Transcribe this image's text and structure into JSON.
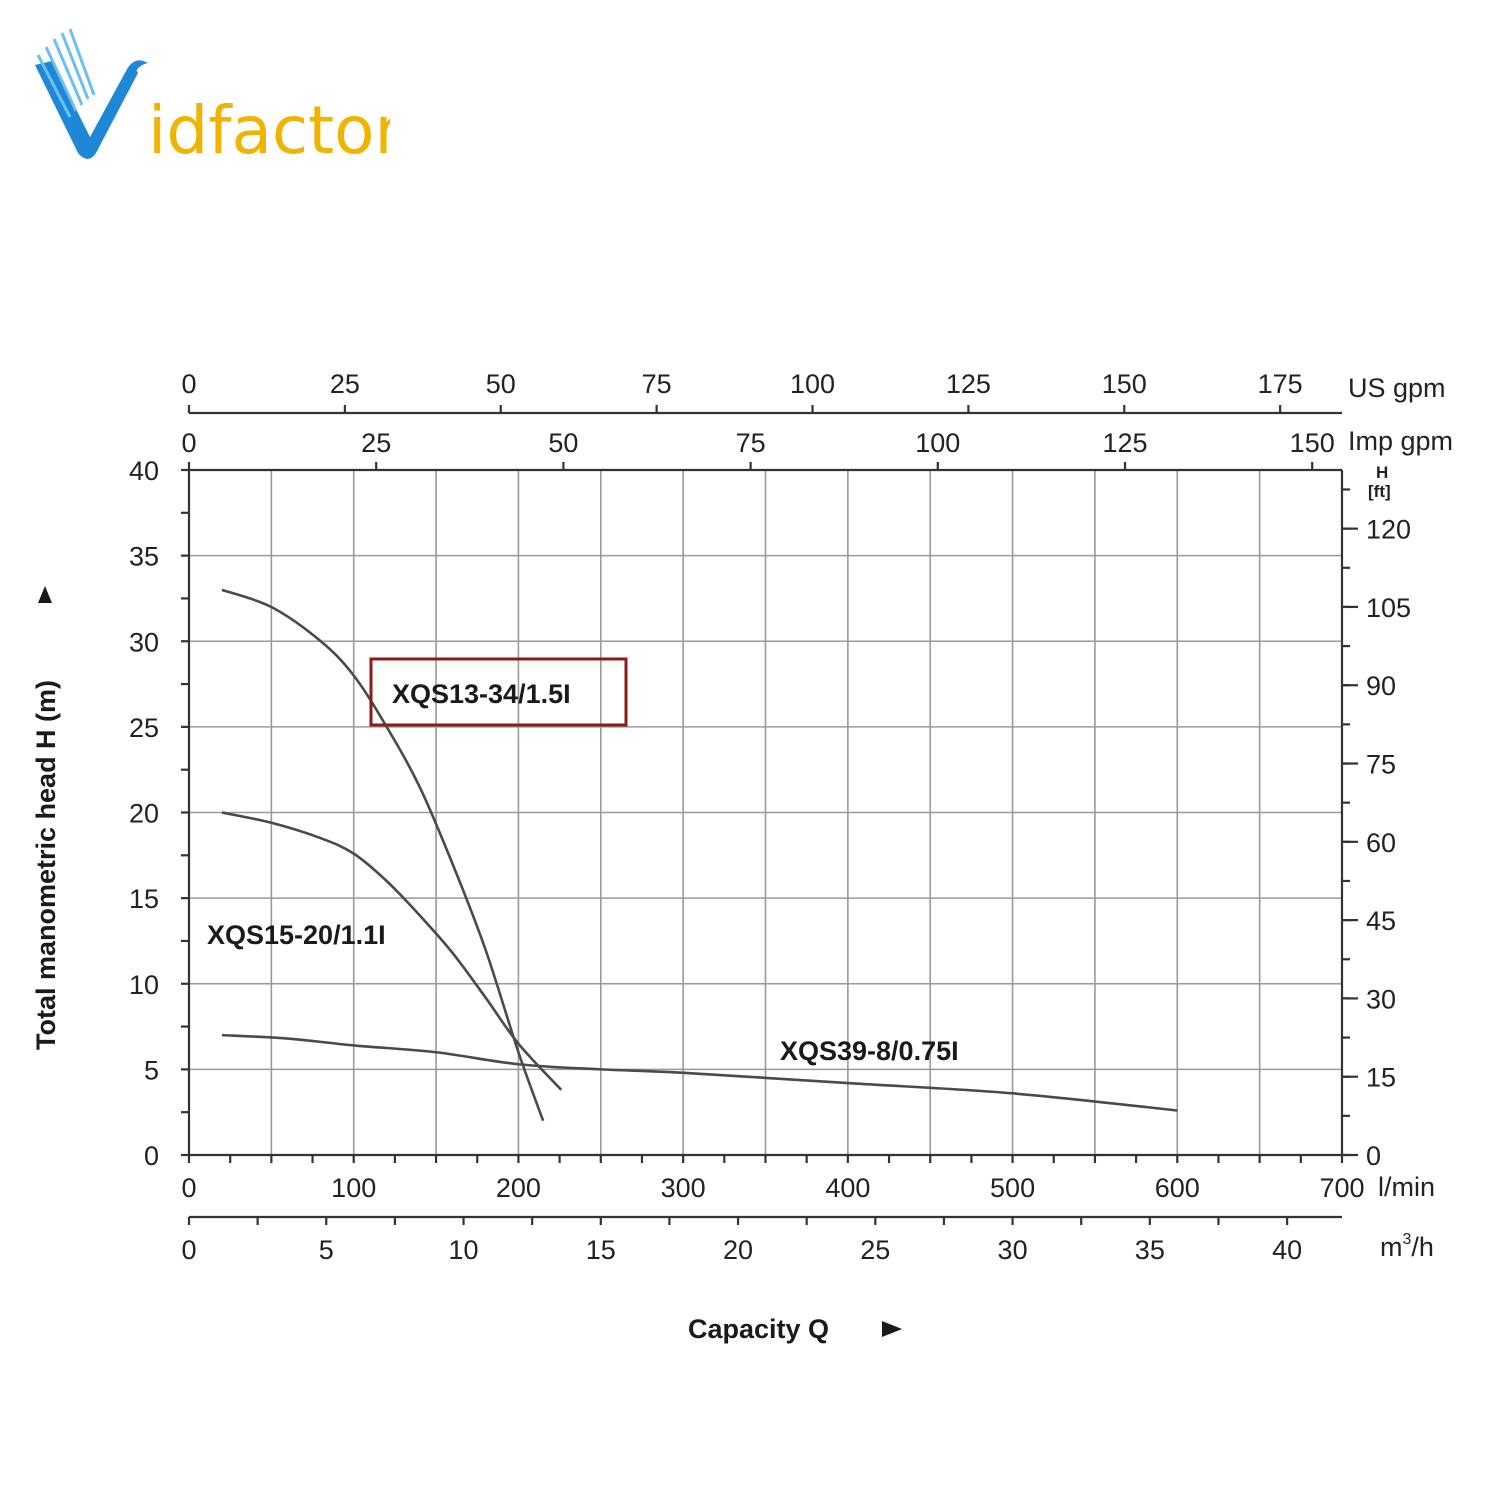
{
  "logo": {
    "text_brand": "idfactor",
    "colors": {
      "v": "#1e88d6",
      "text": "#f0b400"
    }
  },
  "chart_data": {
    "type": "line",
    "title": "",
    "xlabel": "Capacity Q",
    "ylabel": "Total manometric head H (m)",
    "xlim": [
      0,
      700
    ],
    "ylim": [
      0,
      40
    ],
    "grid": true,
    "x_unit": "l/min",
    "x_ticks": [
      0,
      100,
      200,
      300,
      400,
      500,
      600,
      700
    ],
    "y_ticks": [
      0,
      5,
      10,
      15,
      20,
      25,
      30,
      35,
      40
    ],
    "secondary_axes": {
      "us_gpm": {
        "unit": "US gpm",
        "ticks": [
          0,
          25,
          50,
          75,
          100,
          125,
          150,
          175
        ]
      },
      "imp_gpm": {
        "unit": "Imp gpm",
        "ticks": [
          0,
          25,
          50,
          75,
          100,
          125,
          150
        ]
      },
      "m3h": {
        "unit_base": "m",
        "unit_sup": "3",
        "unit_tail": "/h",
        "ticks": [
          0,
          5,
          10,
          15,
          20,
          25,
          30,
          35,
          40
        ]
      },
      "ft": {
        "unit_top": "H",
        "unit_bottom": "[ft]",
        "ticks": [
          0,
          15,
          30,
          45,
          60,
          75,
          90,
          105,
          120
        ]
      }
    },
    "series": [
      {
        "name": "XQS13-34/1.5I",
        "highlighted": true,
        "x": [
          20,
          50,
          80,
          100,
          120,
          140,
          160,
          180,
          200,
          215
        ],
        "y": [
          33,
          32,
          30,
          28,
          25,
          21.5,
          17,
          12,
          6,
          2
        ]
      },
      {
        "name": "XQS15-20/1.1I",
        "x": [
          20,
          50,
          80,
          100,
          120,
          140,
          160,
          180,
          200,
          226
        ],
        "y": [
          20,
          19.4,
          18.5,
          17.6,
          16,
          14,
          11.8,
          9.2,
          6.5,
          3.8
        ]
      },
      {
        "name": "XQS39-8/0.75I",
        "x": [
          20,
          60,
          100,
          150,
          200,
          250,
          300,
          400,
          500,
          600
        ],
        "y": [
          7,
          6.8,
          6.4,
          6,
          5.3,
          5,
          4.8,
          4.2,
          3.6,
          2.6
        ]
      }
    ],
    "highlight_box_color": "#8b1a1a"
  }
}
